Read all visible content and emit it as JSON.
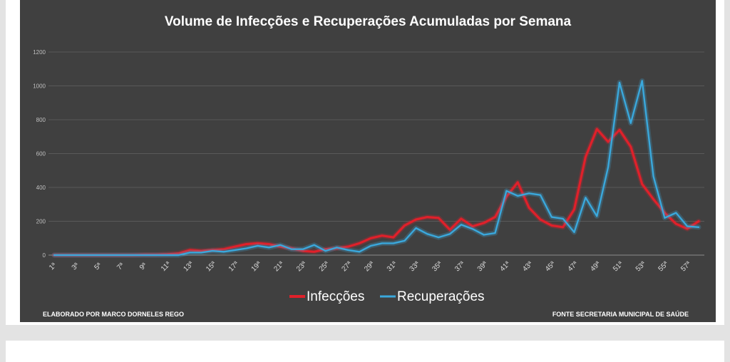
{
  "chart_data": {
    "type": "line",
    "title": "Volume de Infecções e Recuperações Acumuladas por Semana",
    "ylim": [
      0,
      1200
    ],
    "yticks": [
      "0",
      "200",
      "400",
      "600",
      "800",
      "1000",
      "1200"
    ],
    "x_tick_labels": [
      "1ª",
      "3ª",
      "5ª",
      "7ª",
      "9ª",
      "11ª",
      "13ª",
      "15ª",
      "17ª",
      "19ª",
      "21ª",
      "23ª",
      "25ª",
      "27ª",
      "29ª",
      "31ª",
      "33ª",
      "35ª",
      "37ª",
      "39ª",
      "41ª",
      "43ª",
      "45ª",
      "47ª",
      "49ª",
      "51ª",
      "53ª",
      "55ª",
      "57ª"
    ],
    "weeks": [
      1,
      2,
      3,
      4,
      5,
      6,
      7,
      8,
      9,
      10,
      11,
      12,
      13,
      14,
      15,
      16,
      17,
      18,
      19,
      20,
      21,
      22,
      23,
      24,
      25,
      26,
      27,
      28,
      29,
      30,
      31,
      32,
      33,
      34,
      35,
      36,
      37,
      38,
      39,
      40,
      41,
      42,
      43,
      44,
      45,
      46,
      47,
      48,
      49,
      50,
      51,
      52,
      53,
      54,
      55,
      56,
      57,
      58
    ],
    "grid": true,
    "legend_position": "bottom-center",
    "series": [
      {
        "name": "Infecções",
        "color": "#e0202a",
        "values": [
          0,
          0,
          0,
          0,
          0,
          0,
          0,
          0,
          2,
          2,
          5,
          10,
          30,
          25,
          30,
          35,
          50,
          65,
          70,
          65,
          50,
          40,
          25,
          20,
          35,
          40,
          50,
          70,
          100,
          115,
          105,
          175,
          210,
          225,
          220,
          150,
          215,
          170,
          190,
          225,
          345,
          430,
          280,
          210,
          175,
          165,
          270,
          580,
          745,
          670,
          740,
          640,
          420,
          330,
          250,
          185,
          155,
          200
        ]
      },
      {
        "name": "Recuperações",
        "color": "#3aa8dc",
        "values": [
          0,
          0,
          0,
          0,
          0,
          0,
          0,
          0,
          0,
          0,
          0,
          0,
          15,
          15,
          25,
          20,
          30,
          40,
          55,
          45,
          60,
          35,
          35,
          60,
          25,
          45,
          30,
          20,
          55,
          70,
          70,
          85,
          160,
          125,
          105,
          125,
          180,
          155,
          120,
          130,
          380,
          350,
          365,
          355,
          225,
          215,
          135,
          340,
          230,
          520,
          1020,
          780,
          1030,
          465,
          220,
          250,
          170,
          165
        ]
      }
    ],
    "footer_left": "ELABORADO POR MARCO DORNELES REGO",
    "footer_right": "FONTE SECRETARIA MUNICIPAL DE SAÚDE"
  }
}
